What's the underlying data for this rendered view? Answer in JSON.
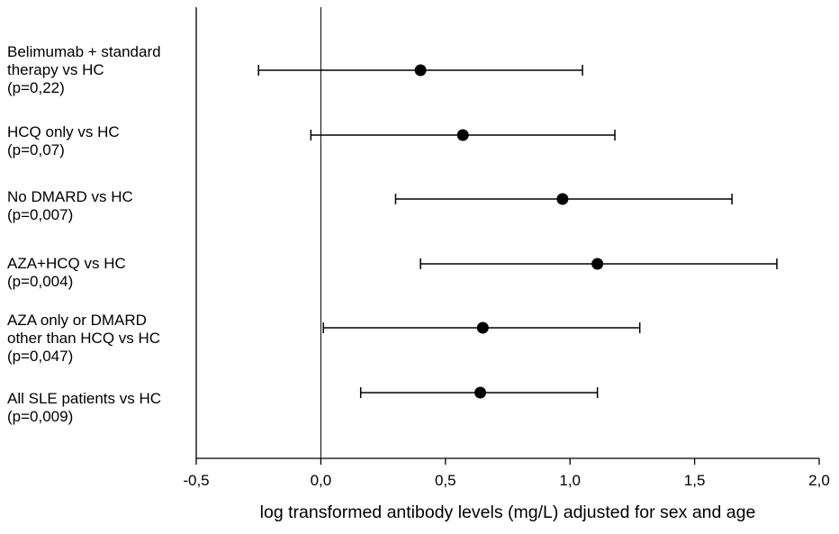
{
  "chart_data": {
    "type": "forest",
    "title": "",
    "xlabel": "log transformed antibody levels (mg/L) adjusted for sex and age",
    "ylabel": "",
    "xlim": [
      -0.5,
      2.0
    ],
    "xticks": [
      -0.5,
      0.0,
      0.5,
      1.0,
      1.5,
      2.0
    ],
    "xtick_labels": [
      "-0,5",
      "0,0",
      "0,5",
      "1,0",
      "1,5",
      "2,0"
    ],
    "reference_line": 0.0,
    "grid": false,
    "rows": [
      {
        "label": [
          "Belimumab + standard",
          "therapy vs HC",
          "(p=0,22)"
        ],
        "estimate": 0.4,
        "ci_low": -0.25,
        "ci_high": 1.05
      },
      {
        "label": [
          "HCQ only vs HC",
          "(p=0,07)"
        ],
        "estimate": 0.57,
        "ci_low": -0.04,
        "ci_high": 1.18
      },
      {
        "label": [
          "No DMARD vs HC",
          "(p=0,007)"
        ],
        "estimate": 0.97,
        "ci_low": 0.3,
        "ci_high": 1.65
      },
      {
        "label": [
          "AZA+HCQ vs HC",
          "(p=0,004)"
        ],
        "estimate": 1.11,
        "ci_low": 0.4,
        "ci_high": 1.83
      },
      {
        "label": [
          "AZA only or DMARD",
          "other than HCQ vs HC",
          "(p=0,047)"
        ],
        "estimate": 0.65,
        "ci_low": 0.01,
        "ci_high": 1.28
      },
      {
        "label": [
          "All SLE patients vs HC",
          "(p=0,009)"
        ],
        "estimate": 0.64,
        "ci_low": 0.16,
        "ci_high": 1.11
      }
    ]
  }
}
